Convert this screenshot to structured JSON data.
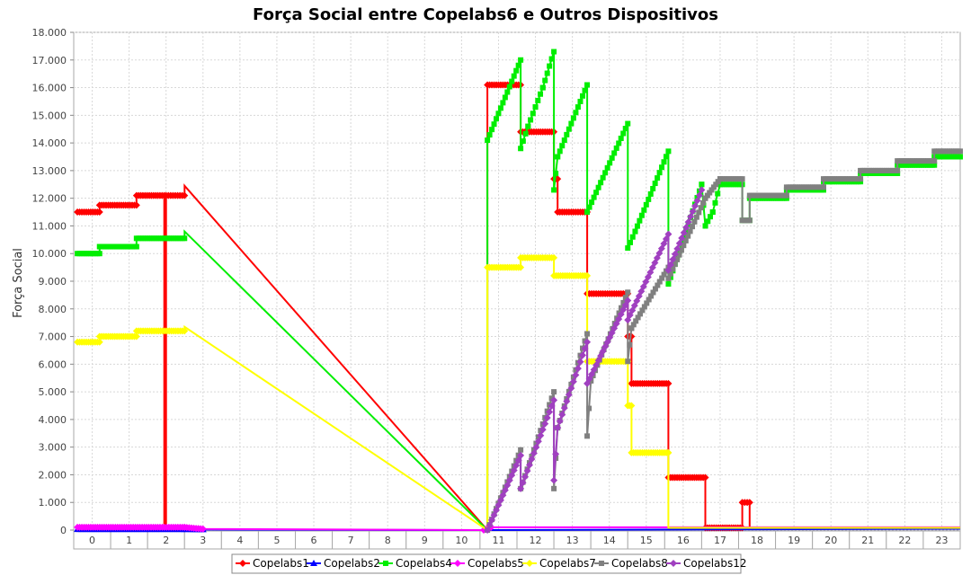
{
  "chart_data": {
    "type": "line",
    "title": "Força Social entre Copelabs6 e Outros Dispositivos",
    "xlabel": "",
    "ylabel": "Força Social",
    "x_ticks": [
      "0",
      "1",
      "2",
      "3",
      "4",
      "5",
      "6",
      "7",
      "8",
      "9",
      "10",
      "11",
      "12",
      "13",
      "14",
      "15",
      "16",
      "17",
      "18",
      "19",
      "20",
      "21",
      "22",
      "23"
    ],
    "y_ticks": [
      "0",
      "1.000",
      "2.000",
      "3.000",
      "4.000",
      "5.000",
      "6.000",
      "7.000",
      "8.000",
      "9.000",
      "10.000",
      "11.000",
      "12.000",
      "13.000",
      "14.000",
      "15.000",
      "16.000",
      "17.000",
      "18.000"
    ],
    "xlim": [
      -0.5,
      23.5
    ],
    "ylim": [
      0,
      18000
    ],
    "grid": true,
    "legend_position": "bottom",
    "series": [
      {
        "name": "Copelabs1",
        "color": "#ff0000",
        "marker": "diamond",
        "points": [
          [
            -0.4,
            11500
          ],
          [
            0.2,
            11500
          ],
          [
            0.2,
            11750
          ],
          [
            1.2,
            11750
          ],
          [
            1.2,
            12100
          ],
          [
            1.95,
            12100
          ],
          [
            1.95,
            80
          ],
          [
            2.0,
            80
          ],
          [
            2.0,
            12100
          ],
          [
            2.5,
            12100
          ],
          [
            2.5,
            12450
          ],
          [
            10.7,
            0
          ],
          [
            10.7,
            16100
          ],
          [
            11.6,
            16100
          ],
          [
            11.6,
            14400
          ],
          [
            12.5,
            14400
          ],
          [
            12.5,
            12700
          ],
          [
            12.6,
            12700
          ],
          [
            12.6,
            11500
          ],
          [
            13.4,
            11500
          ],
          [
            13.4,
            10300
          ],
          [
            13.4,
            8550
          ],
          [
            14.5,
            8550
          ],
          [
            14.5,
            7000
          ],
          [
            14.6,
            7000
          ],
          [
            14.6,
            5300
          ],
          [
            15.6,
            5300
          ],
          [
            15.6,
            1900
          ],
          [
            16.6,
            1900
          ],
          [
            16.6,
            80
          ],
          [
            17.6,
            80
          ],
          [
            17.6,
            1000
          ],
          [
            17.8,
            1000
          ],
          [
            17.8,
            80
          ],
          [
            23.5,
            80
          ]
        ]
      },
      {
        "name": "Copelabs2",
        "color": "#0000ff",
        "marker": "triangle",
        "points": [
          [
            -0.4,
            30
          ],
          [
            2.5,
            30
          ],
          [
            3,
            20
          ],
          [
            10.6,
            0
          ],
          [
            23.5,
            50
          ]
        ]
      },
      {
        "name": "Copelabs4",
        "color": "#00ee00",
        "marker": "square",
        "points": [
          [
            -0.4,
            10000
          ],
          [
            0.2,
            10000
          ],
          [
            0.2,
            10250
          ],
          [
            1.2,
            10250
          ],
          [
            1.2,
            10550
          ],
          [
            2.5,
            10550
          ],
          [
            2.5,
            10800
          ],
          [
            10.7,
            0
          ],
          [
            10.7,
            14100
          ],
          [
            11.6,
            17000
          ],
          [
            11.6,
            13800
          ],
          [
            11.8,
            14600
          ],
          [
            12.0,
            15300
          ],
          [
            12.2,
            16000
          ],
          [
            12.5,
            17300
          ],
          [
            12.5,
            12300
          ],
          [
            12.6,
            13500
          ],
          [
            13.4,
            16100
          ],
          [
            13.4,
            11500
          ],
          [
            14.5,
            14700
          ],
          [
            14.5,
            10200
          ],
          [
            14.7,
            10800
          ],
          [
            15.6,
            13700
          ],
          [
            15.6,
            8900
          ],
          [
            16.5,
            12500
          ],
          [
            16.6,
            11000
          ],
          [
            16.8,
            11500
          ],
          [
            17.0,
            12500
          ],
          [
            17.6,
            12500
          ],
          [
            17.6,
            11200
          ],
          [
            17.8,
            11200
          ],
          [
            17.8,
            12000
          ],
          [
            18.8,
            12000
          ],
          [
            18.8,
            12300
          ],
          [
            19.8,
            12300
          ],
          [
            19.8,
            12600
          ],
          [
            20.8,
            12600
          ],
          [
            20.8,
            12900
          ],
          [
            21.8,
            12900
          ],
          [
            21.8,
            13200
          ],
          [
            22.8,
            13200
          ],
          [
            22.8,
            13500
          ],
          [
            23.5,
            13500
          ]
        ]
      },
      {
        "name": "Copelabs5",
        "color": "#ff00ff",
        "marker": "diamond",
        "points": [
          [
            -0.4,
            100
          ],
          [
            2.5,
            100
          ],
          [
            3,
            40
          ],
          [
            10.6,
            0
          ],
          [
            10.8,
            100
          ],
          [
            23.5,
            100
          ]
        ]
      },
      {
        "name": "Copelabs7",
        "color": "#ffff00",
        "marker": "diamond",
        "points": [
          [
            -0.4,
            6800
          ],
          [
            0.2,
            6800
          ],
          [
            0.2,
            7000
          ],
          [
            1.2,
            7000
          ],
          [
            1.2,
            7200
          ],
          [
            2.5,
            7200
          ],
          [
            2.5,
            7350
          ],
          [
            10.7,
            0
          ],
          [
            10.7,
            9500
          ],
          [
            11.6,
            9500
          ],
          [
            11.6,
            9850
          ],
          [
            12.5,
            9850
          ],
          [
            12.5,
            9200
          ],
          [
            13.4,
            9200
          ],
          [
            13.4,
            6600
          ],
          [
            13.4,
            6100
          ],
          [
            14.5,
            6100
          ],
          [
            14.5,
            4500
          ],
          [
            14.6,
            4500
          ],
          [
            14.6,
            2800
          ],
          [
            15.6,
            2800
          ],
          [
            15.6,
            80
          ],
          [
            23.5,
            80
          ]
        ]
      },
      {
        "name": "Copelabs8",
        "color": "#808080",
        "marker": "square",
        "points": [
          [
            10.7,
            0
          ],
          [
            11.6,
            2900
          ],
          [
            11.6,
            1500
          ],
          [
            12.5,
            5000
          ],
          [
            12.5,
            1500
          ],
          [
            12.6,
            3700
          ],
          [
            13.4,
            7100
          ],
          [
            13.4,
            3400
          ],
          [
            13.5,
            5400
          ],
          [
            14.5,
            8600
          ],
          [
            14.5,
            6100
          ],
          [
            14.6,
            7300
          ],
          [
            15.6,
            9500
          ],
          [
            15.6,
            9100
          ],
          [
            16.6,
            12000
          ],
          [
            17.0,
            12700
          ],
          [
            17.6,
            12700
          ],
          [
            17.6,
            11200
          ],
          [
            17.8,
            11200
          ],
          [
            17.8,
            12100
          ],
          [
            18.8,
            12100
          ],
          [
            18.8,
            12400
          ],
          [
            19.8,
            12400
          ],
          [
            19.8,
            12700
          ],
          [
            20.8,
            12700
          ],
          [
            20.8,
            13000
          ],
          [
            21.8,
            13000
          ],
          [
            21.8,
            13350
          ],
          [
            22.8,
            13350
          ],
          [
            22.8,
            13700
          ],
          [
            23.5,
            13700
          ]
        ]
      },
      {
        "name": "Copelabs12",
        "color": "#a040c0",
        "marker": "diamond",
        "points": [
          [
            10.7,
            0
          ],
          [
            11.6,
            2700
          ],
          [
            11.6,
            1500
          ],
          [
            12.5,
            4700
          ],
          [
            12.5,
            1800
          ],
          [
            12.6,
            3700
          ],
          [
            13.4,
            6800
          ],
          [
            13.4,
            5300
          ],
          [
            14.5,
            8300
          ],
          [
            14.5,
            7600
          ],
          [
            15.6,
            10700
          ],
          [
            15.6,
            9400
          ],
          [
            16.5,
            12300
          ]
        ]
      }
    ]
  }
}
